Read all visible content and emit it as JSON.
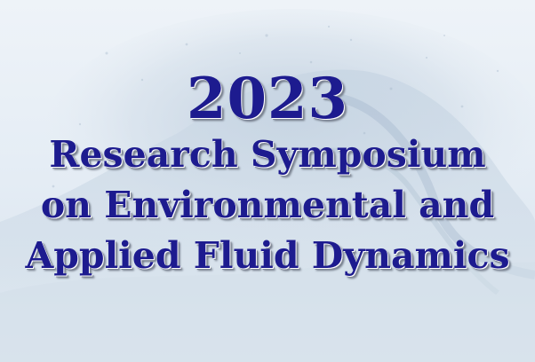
{
  "banner": {
    "year": "2023",
    "title_lines": [
      "Research Symposium",
      "on Environmental and",
      "Applied Fluid Dynamics"
    ],
    "background_image": "ocean-wave",
    "colors": {
      "title_text": "#1d1b8f",
      "background": "#e5edf5"
    }
  }
}
